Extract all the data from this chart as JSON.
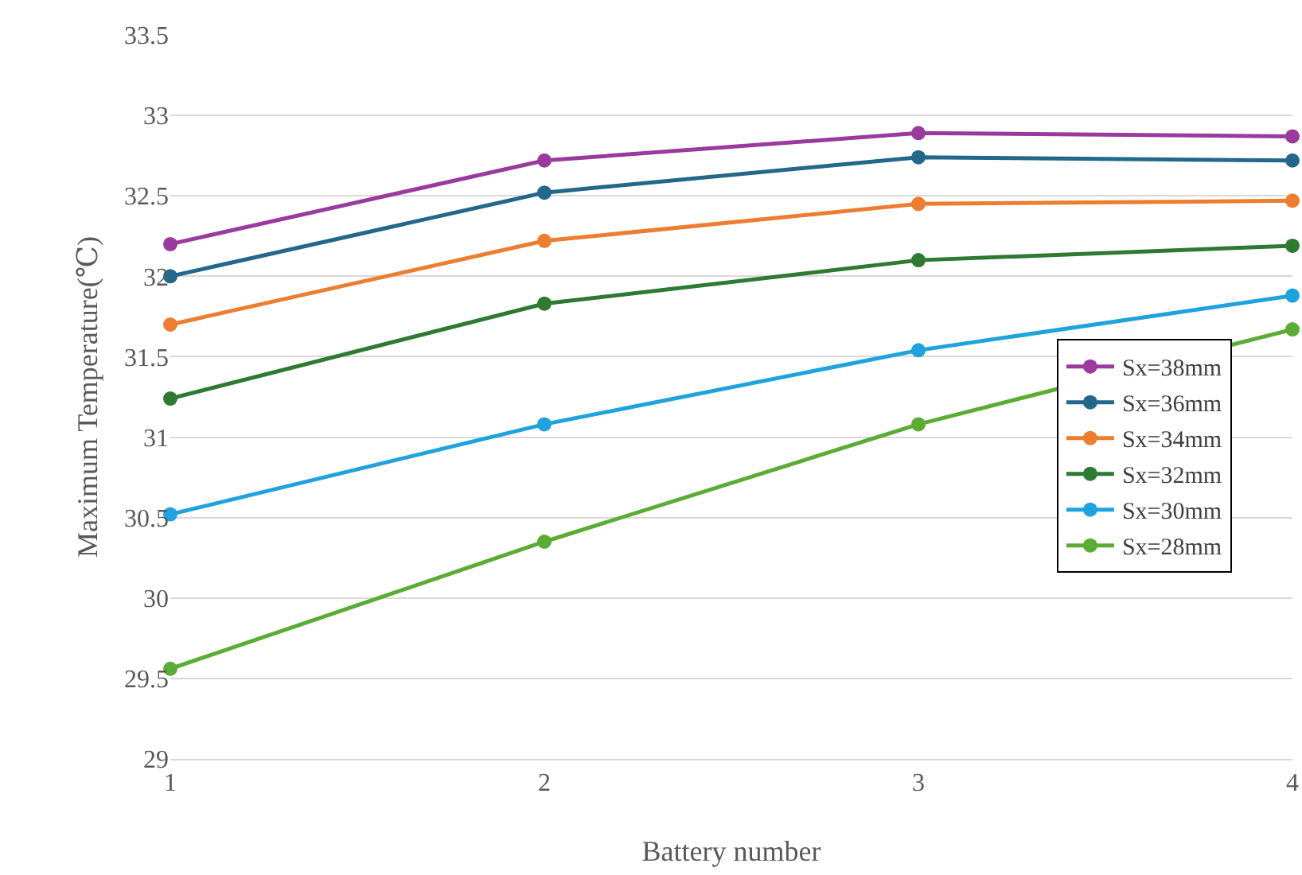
{
  "chart_data": {
    "type": "line",
    "xlabel": "Battery number",
    "ylabel": "Maximum Temperature(℃)",
    "x": [
      1,
      2,
      3,
      4
    ],
    "series": [
      {
        "name": "Sx=38mm",
        "color": "#9b3a9e",
        "values": [
          32.2,
          32.72,
          32.89,
          32.87
        ]
      },
      {
        "name": "Sx=36mm",
        "color": "#23688a",
        "values": [
          32.0,
          32.52,
          32.74,
          32.72
        ]
      },
      {
        "name": "Sx=34mm",
        "color": "#ed7d31",
        "values": [
          31.7,
          32.22,
          32.45,
          32.47
        ]
      },
      {
        "name": "Sx=32mm",
        "color": "#2e7a33",
        "values": [
          31.24,
          31.83,
          32.1,
          32.19
        ]
      },
      {
        "name": "Sx=30mm",
        "color": "#1fa2dd",
        "values": [
          30.52,
          31.08,
          31.54,
          31.88
        ]
      },
      {
        "name": "Sx=28mm",
        "color": "#5aac35",
        "values": [
          29.56,
          30.35,
          31.08,
          31.67
        ]
      }
    ],
    "xlim": [
      1,
      4
    ],
    "xticks": [
      1,
      2,
      3,
      4
    ],
    "ylim": [
      29,
      33.5
    ],
    "yticks": [
      29,
      29.5,
      30,
      30.5,
      31,
      31.5,
      32,
      32.5,
      33,
      33.5
    ],
    "grid": "y",
    "legend": "right",
    "marker": "circle",
    "line_style": "solid"
  }
}
